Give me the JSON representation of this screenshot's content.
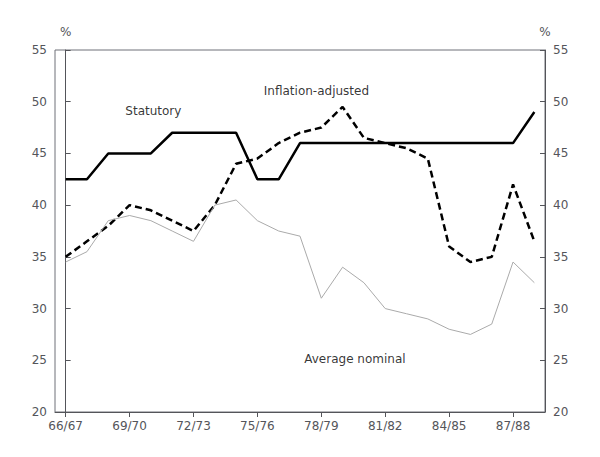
{
  "chart_data": {
    "type": "line",
    "x": [
      0,
      1,
      2,
      3,
      4,
      5,
      6,
      7,
      8,
      9,
      10,
      11,
      12,
      13,
      14,
      15,
      16,
      17,
      18,
      19,
      20,
      21,
      22
    ],
    "xlim": [
      -0.5,
      22.5
    ],
    "xticks": [
      {
        "value": 0,
        "label": "66/67"
      },
      {
        "value": 3,
        "label": "69/70"
      },
      {
        "value": 6,
        "label": "72/73"
      },
      {
        "value": 9,
        "label": "75/76"
      },
      {
        "value": 12,
        "label": "78/79"
      },
      {
        "value": 15,
        "label": "81/82"
      },
      {
        "value": 18,
        "label": "84/85"
      },
      {
        "value": 21,
        "label": "87/88"
      }
    ],
    "ylim": [
      20,
      55
    ],
    "yticks": [
      20,
      25,
      30,
      35,
      40,
      45,
      50,
      55
    ],
    "y2lim": [
      20,
      55
    ],
    "y2ticks": [
      20,
      25,
      30,
      35,
      40,
      45,
      50,
      55
    ],
    "ylabel": "%",
    "y2label": "%",
    "grid": false,
    "series": [
      {
        "color": "#000000",
        "line_style": "solid",
        "values": [
          42.5,
          42.5,
          45.0,
          45.0,
          45.0,
          47.0,
          47.0,
          47.0,
          47.0,
          42.5,
          42.5,
          46.0,
          46.0,
          46.0,
          46.0,
          46.0,
          46.0,
          46.0,
          46.0,
          46.0,
          46.0,
          46.0,
          49.0
        ]
      },
      {
        "color": "#000000",
        "line_style": "dashed",
        "values": [
          35.0,
          36.5,
          38.0,
          40.0,
          39.5,
          38.5,
          37.5,
          40.0,
          44.0,
          44.5,
          46.0,
          47.0,
          47.5,
          49.5,
          46.5,
          46.0,
          45.5,
          44.5,
          36.0,
          34.5,
          35.0,
          42.0,
          36.5
        ]
      },
      {
        "color": "#aaaaaa",
        "line_style": "solid",
        "values": [
          34.5,
          35.5,
          38.5,
          39.0,
          38.5,
          37.5,
          36.5,
          40.0,
          40.5,
          38.5,
          37.5,
          37.0,
          31.0,
          34.0,
          32.5,
          30.0,
          29.5,
          29.0,
          28.0,
          27.5,
          28.5,
          34.5,
          32.5
        ]
      }
    ],
    "annotations": [
      {
        "text": "Statutory",
        "x": 2.8,
        "y": 48.5
      },
      {
        "text": "Inflation-adjusted",
        "x": 9.3,
        "y": 50.5
      },
      {
        "text": "Average nominal",
        "x": 11.2,
        "y": 24.5
      }
    ]
  }
}
